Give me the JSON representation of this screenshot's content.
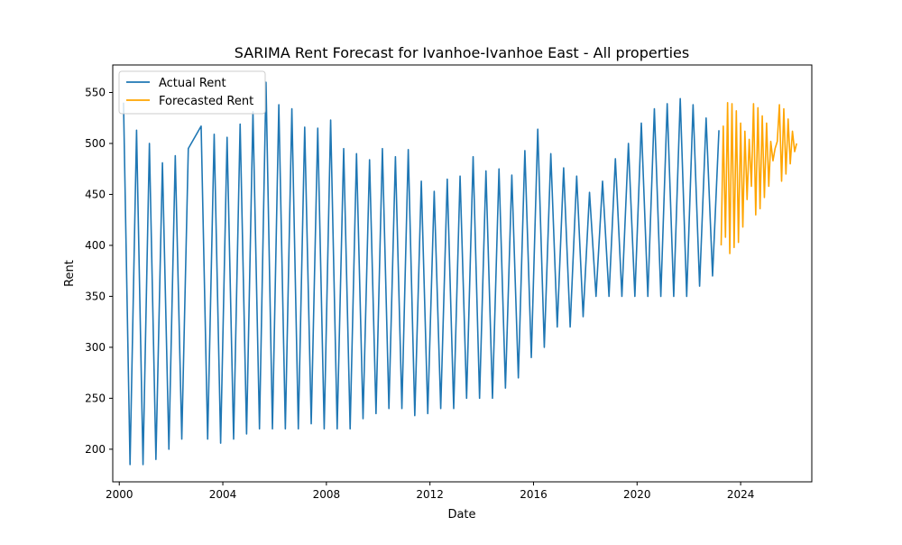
{
  "chart_data": {
    "type": "line",
    "title": "SARIMA Rent Forecast for Ivanhoe-Ivanhoe East - All properties",
    "xlabel": "Date",
    "ylabel": "Rent",
    "xlim": [
      "1999-10-01",
      "2026-10-01"
    ],
    "ylim": [
      168,
      577
    ],
    "x_ticks": [
      "2000",
      "2004",
      "2008",
      "2012",
      "2016",
      "2020",
      "2024"
    ],
    "y_ticks": [
      200,
      250,
      300,
      350,
      400,
      450,
      500,
      550
    ],
    "grid": false,
    "legend_position": "top-left",
    "series": [
      {
        "name": "Actual Rent",
        "color": "#1f77b4",
        "points": [
          [
            "2000-03-01",
            540
          ],
          [
            "2000-06-01",
            185
          ],
          [
            "2000-09-01",
            513
          ],
          [
            "2000-12-01",
            185
          ],
          [
            "2001-03-01",
            500
          ],
          [
            "2001-06-01",
            190
          ],
          [
            "2001-09-01",
            481
          ],
          [
            "2001-12-01",
            200
          ],
          [
            "2002-03-01",
            488
          ],
          [
            "2002-06-01",
            210
          ],
          [
            "2002-09-01",
            495
          ],
          [
            "2003-03-01",
            517
          ],
          [
            "2003-06-01",
            210
          ],
          [
            "2003-09-01",
            509
          ],
          [
            "2003-12-01",
            206
          ],
          [
            "2004-03-01",
            506
          ],
          [
            "2004-06-01",
            210
          ],
          [
            "2004-09-01",
            519
          ],
          [
            "2004-12-01",
            215
          ],
          [
            "2005-03-01",
            531
          ],
          [
            "2005-06-01",
            220
          ],
          [
            "2005-09-01",
            560
          ],
          [
            "2005-12-01",
            220
          ],
          [
            "2006-03-01",
            538
          ],
          [
            "2006-06-01",
            220
          ],
          [
            "2006-09-01",
            534
          ],
          [
            "2006-12-01",
            220
          ],
          [
            "2007-03-01",
            516
          ],
          [
            "2007-06-01",
            225
          ],
          [
            "2007-09-01",
            515
          ],
          [
            "2007-12-01",
            220
          ],
          [
            "2008-03-01",
            523
          ],
          [
            "2008-06-01",
            220
          ],
          [
            "2008-09-01",
            495
          ],
          [
            "2008-12-01",
            220
          ],
          [
            "2009-03-01",
            490
          ],
          [
            "2009-06-01",
            230
          ],
          [
            "2009-09-01",
            484
          ],
          [
            "2009-12-01",
            235
          ],
          [
            "2010-03-01",
            495
          ],
          [
            "2010-06-01",
            240
          ],
          [
            "2010-09-01",
            487
          ],
          [
            "2010-12-01",
            240
          ],
          [
            "2011-03-01",
            494
          ],
          [
            "2011-06-01",
            233
          ],
          [
            "2011-09-01",
            463
          ],
          [
            "2011-12-01",
            235
          ],
          [
            "2012-03-01",
            453
          ],
          [
            "2012-06-01",
            240
          ],
          [
            "2012-09-01",
            465
          ],
          [
            "2012-12-01",
            240
          ],
          [
            "2013-03-01",
            468
          ],
          [
            "2013-06-01",
            250
          ],
          [
            "2013-09-01",
            487
          ],
          [
            "2013-12-01",
            250
          ],
          [
            "2014-03-01",
            473
          ],
          [
            "2014-06-01",
            250
          ],
          [
            "2014-09-01",
            475
          ],
          [
            "2014-12-01",
            260
          ],
          [
            "2015-03-01",
            469
          ],
          [
            "2015-06-01",
            270
          ],
          [
            "2015-09-01",
            493
          ],
          [
            "2015-12-01",
            290
          ],
          [
            "2016-03-01",
            514
          ],
          [
            "2016-06-01",
            300
          ],
          [
            "2016-09-01",
            490
          ],
          [
            "2016-12-01",
            320
          ],
          [
            "2017-03-01",
            476
          ],
          [
            "2017-06-01",
            320
          ],
          [
            "2017-09-01",
            468
          ],
          [
            "2017-12-01",
            330
          ],
          [
            "2018-03-01",
            452
          ],
          [
            "2018-06-01",
            350
          ],
          [
            "2018-09-01",
            463
          ],
          [
            "2018-12-01",
            350
          ],
          [
            "2019-03-01",
            485
          ],
          [
            "2019-06-01",
            350
          ],
          [
            "2019-09-01",
            500
          ],
          [
            "2019-12-01",
            350
          ],
          [
            "2020-03-01",
            520
          ],
          [
            "2020-06-01",
            350
          ],
          [
            "2020-09-01",
            534
          ],
          [
            "2020-12-01",
            350
          ],
          [
            "2021-03-01",
            539
          ],
          [
            "2021-06-01",
            350
          ],
          [
            "2021-09-01",
            544
          ],
          [
            "2021-12-01",
            350
          ],
          [
            "2022-03-01",
            538
          ],
          [
            "2022-06-01",
            360
          ],
          [
            "2022-09-01",
            525
          ],
          [
            "2022-12-01",
            370
          ],
          [
            "2023-03-01",
            513
          ]
        ]
      },
      {
        "name": "Forecasted Rent",
        "color": "#ffa500",
        "points": [
          [
            "2023-04-01",
            400
          ],
          [
            "2023-05-01",
            517
          ],
          [
            "2023-06-01",
            408
          ],
          [
            "2023-07-01",
            540
          ],
          [
            "2023-08-01",
            392
          ],
          [
            "2023-09-01",
            539
          ],
          [
            "2023-10-01",
            398
          ],
          [
            "2023-11-01",
            532
          ],
          [
            "2023-12-01",
            403
          ],
          [
            "2024-01-01",
            520
          ],
          [
            "2024-02-01",
            418
          ],
          [
            "2024-03-01",
            512
          ],
          [
            "2024-04-01",
            445
          ],
          [
            "2024-05-01",
            504
          ],
          [
            "2024-06-01",
            458
          ],
          [
            "2024-07-01",
            539
          ],
          [
            "2024-08-01",
            430
          ],
          [
            "2024-09-01",
            535
          ],
          [
            "2024-10-01",
            436
          ],
          [
            "2024-11-01",
            527
          ],
          [
            "2024-12-01",
            447
          ],
          [
            "2025-01-01",
            520
          ],
          [
            "2025-02-01",
            458
          ],
          [
            "2025-03-01",
            502
          ],
          [
            "2025-04-01",
            483
          ],
          [
            "2025-05-01",
            495
          ],
          [
            "2025-06-01",
            502
          ],
          [
            "2025-07-01",
            538
          ],
          [
            "2025-08-01",
            463
          ],
          [
            "2025-09-01",
            534
          ],
          [
            "2025-10-01",
            470
          ],
          [
            "2025-11-01",
            524
          ],
          [
            "2025-12-01",
            480
          ],
          [
            "2026-01-01",
            512
          ],
          [
            "2026-02-01",
            492
          ],
          [
            "2026-03-01",
            500
          ]
        ]
      }
    ]
  }
}
